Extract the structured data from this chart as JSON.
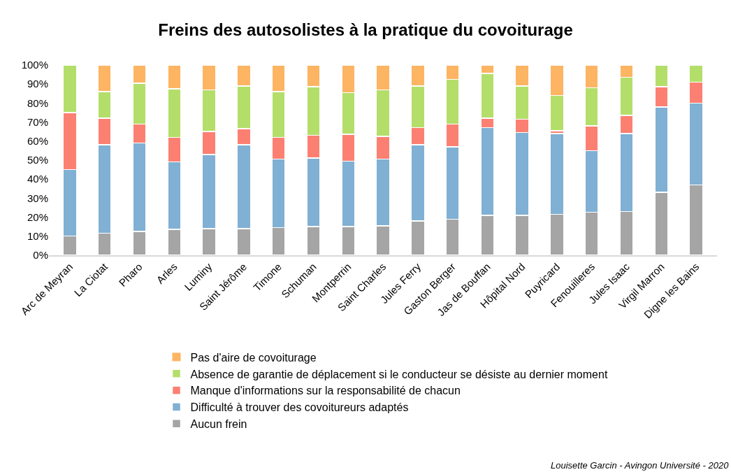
{
  "chart_data": {
    "type": "bar",
    "stacked": true,
    "title": "Freins des autosolistes à la pratique du covoiturage",
    "categories": [
      "Arc de Meyran",
      "La Ciotat",
      "Pharo",
      "Arles",
      "Luminy",
      "Saint Jérôme",
      "Timone",
      "Schuman",
      "Montperrin",
      "Saint Charles",
      "Jules Ferry",
      "Gaston Berger",
      "Jas de Bouffan",
      "Hôpital Nord",
      "Puyricard",
      "Fenouilleres",
      "Jules Isaac",
      "Virgil Marron",
      "Digne les Bains"
    ],
    "series": [
      {
        "name": "Aucun frein",
        "color": "#a5a5a5",
        "values": [
          10,
          11.5,
          12.5,
          13.5,
          14,
          14,
          14.5,
          15,
          15,
          15.5,
          18,
          19,
          21,
          21,
          21.5,
          22.5,
          23,
          33,
          37
        ]
      },
      {
        "name": "Difficulté à trouver des covoitureurs adaptés",
        "color": "#80b0d3",
        "values": [
          35,
          46.5,
          46.5,
          35.5,
          39,
          44,
          36,
          36,
          34.5,
          35,
          40,
          38,
          46,
          43.5,
          42.5,
          32.5,
          41,
          45,
          43
        ]
      },
      {
        "name": "Manque d'informations sur la responsabilité de chacun",
        "color": "#fc8072",
        "values": [
          30,
          14,
          10,
          13,
          12,
          8.5,
          11.5,
          12,
          14,
          12,
          9,
          12,
          5,
          7,
          1.5,
          13,
          9.5,
          10.5,
          11
        ]
      },
      {
        "name": "Absence de garantie de déplacement si le conducteur se désiste au dernier moment",
        "color": "#b4de6a",
        "values": [
          25,
          14,
          21.5,
          25.5,
          22,
          22.5,
          24,
          25.5,
          22,
          24.5,
          22,
          23.5,
          23.5,
          17.5,
          18.5,
          20,
          20,
          11.5,
          9
        ]
      },
      {
        "name": "Pas d'aire de covoiturage",
        "color": "#fdb463",
        "values": [
          0,
          14,
          9.5,
          12.5,
          13,
          11,
          14,
          11.5,
          14.5,
          13,
          11,
          7.5,
          4.5,
          11,
          16,
          12,
          6.5,
          0,
          0
        ]
      }
    ],
    "ylim": [
      0,
      100
    ],
    "yticks": [
      {
        "value": 0,
        "label": "0%"
      },
      {
        "value": 10,
        "label": "10%"
      },
      {
        "value": 20,
        "label": "20%"
      },
      {
        "value": 30,
        "label": "30%"
      },
      {
        "value": 40,
        "label": "40%"
      },
      {
        "value": 50,
        "label": "50%"
      },
      {
        "value": 60,
        "label": "60%"
      },
      {
        "value": 70,
        "label": "70%"
      },
      {
        "value": 80,
        "label": "80%"
      },
      {
        "value": 90,
        "label": "90%"
      },
      {
        "value": 100,
        "label": "100%"
      }
    ],
    "grid": false,
    "legend": "bottom",
    "annotations": [
      "Louisette Garcin - Avingon Université - 2020"
    ]
  }
}
